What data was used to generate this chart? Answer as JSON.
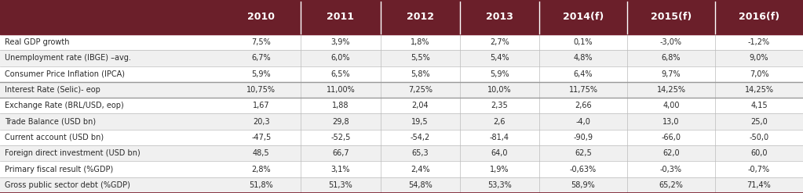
{
  "header_bg": "#6B1F2A",
  "header_text_color": "#FFFFFF",
  "text_color": "#2A2A2A",
  "col_headers": [
    "2010",
    "2011",
    "2012",
    "2013",
    "2014(f)",
    "2015(f)",
    "2016(f)"
  ],
  "rows": [
    [
      "Real GDP growth",
      "7,5%",
      "3,9%",
      "1,8%",
      "2,7%",
      "0,1%",
      "-3,0%",
      "-1,2%"
    ],
    [
      "Unemployment rate (IBGE) –avg.",
      "6,7%",
      "6,0%",
      "5,5%",
      "5,4%",
      "4,8%",
      "6,8%",
      "9,0%"
    ],
    [
      "Consumer Price Inflation (IPCA)",
      "5,9%",
      "6,5%",
      "5,8%",
      "5,9%",
      "6,4%",
      "9,7%",
      "7,0%"
    ],
    [
      "Interest Rate (Selic)- eop",
      "10,75%",
      "11,00%",
      "7,25%",
      "10,0%",
      "11,75%",
      "14,25%",
      "14,25%"
    ],
    [
      "Exchange Rate (BRL/USD, eop)",
      "1,67",
      "1,88",
      "2,04",
      "2,35",
      "2,66",
      "4,00",
      "4,15"
    ],
    [
      "Trade Balance (USD bn)",
      "20,3",
      "29,8",
      "19,5",
      "2,6",
      "-4,0",
      "13,0",
      "25,0"
    ],
    [
      "Current account (USD bn)",
      "-47,5",
      "-52,5",
      "-54,2",
      "-81,4",
      "-90,9",
      "-66,0",
      "-50,0"
    ],
    [
      "Foreign direct investment (USD bn)",
      "48,5",
      "66,7",
      "65,3",
      "64,0",
      "62,5",
      "62,0",
      "60,0"
    ],
    [
      "Primary fiscal result (%GDP)",
      "2,8%",
      "3,1%",
      "2,4%",
      "1,9%",
      "-0,63%",
      "-0,3%",
      "-0,7%"
    ],
    [
      "Gross public sector debt (%GDP)",
      "51,8%",
      "51,3%",
      "54,8%",
      "53,3%",
      "58,9%",
      "65,2%",
      "71,4%"
    ]
  ],
  "thick_border_rows": [
    3,
    4
  ],
  "fig_width": 10.23,
  "fig_height": 2.47,
  "dpi": 100
}
